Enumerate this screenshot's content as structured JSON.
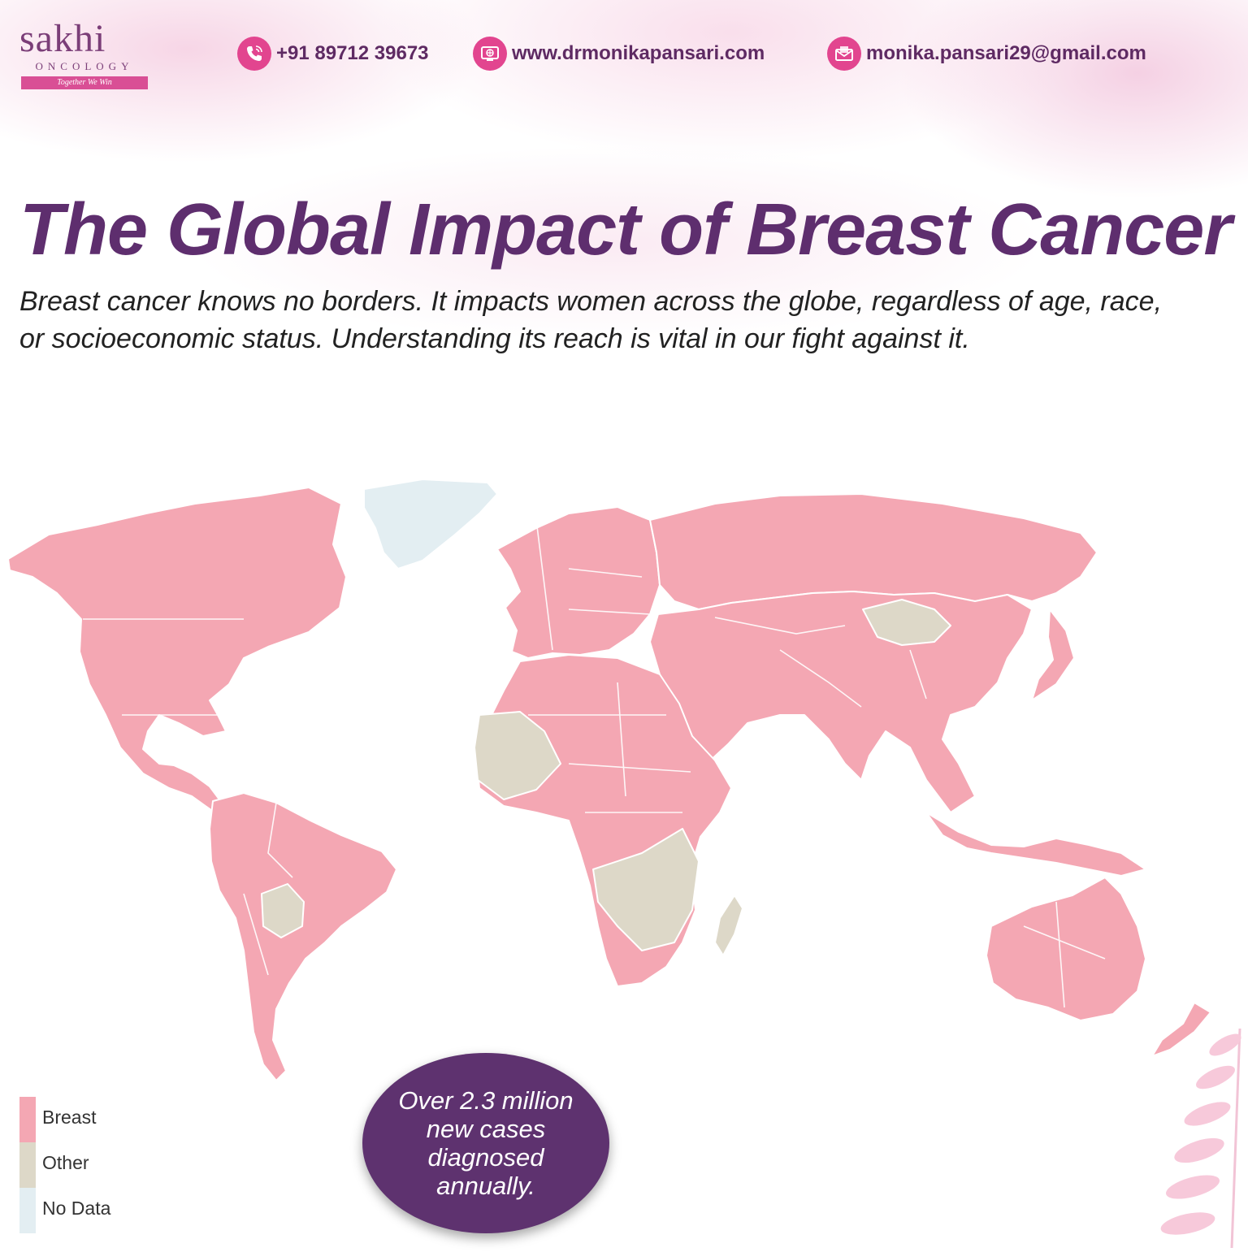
{
  "brand": {
    "name": "sakhi",
    "sub": "ONCOLOGY",
    "tagline": "Together We Win"
  },
  "contacts": {
    "phone": "+91 89712 39673",
    "website": "www.drmonikapansari.com",
    "email": "monika.pansari29@gmail.com"
  },
  "icons": [
    "phone-icon",
    "web-icon",
    "mail-icon"
  ],
  "title": "The Global Impact of Breast Cancer",
  "subtitle_line1": "Breast cancer knows no borders. It impacts women across the globe, regardless of age, race,",
  "subtitle_line2": "or socioeconomic status. Understanding its reach is vital in our fight against it.",
  "legend": [
    {
      "label": "Breast",
      "color": "#f4a7b3"
    },
    {
      "label": "Other",
      "color": "#ddd8c8"
    },
    {
      "label": "No Data",
      "color": "#e3eef2"
    }
  ],
  "callout": {
    "line1": "Over 2.3 million",
    "line2": "new cases diagnosed",
    "line3": "annually."
  },
  "colors": {
    "title": "#5e2e6e",
    "accent": "#e2458f",
    "breast": "#f4a7b3",
    "other": "#ddd8c8",
    "nodata": "#e3eef2",
    "callout_bg": "#5e326f"
  }
}
